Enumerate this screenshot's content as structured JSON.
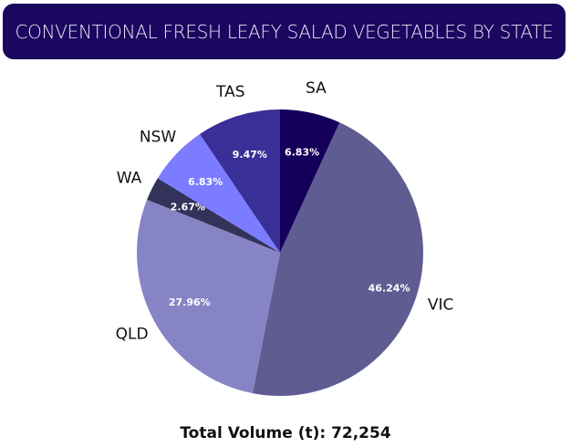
{
  "chart_data": {
    "type": "pie",
    "title": "CONVENTIONAL FRESH LEAFY SALAD VEGETABLES BY STATE",
    "categories": [
      "SA",
      "VIC",
      "QLD",
      "WA",
      "NSW",
      "TAS"
    ],
    "values": [
      6.83,
      46.24,
      27.96,
      2.67,
      6.83,
      9.47
    ],
    "value_labels": [
      "6.83%",
      "46.24%",
      "27.96%",
      "2.67%",
      "6.83%",
      "9.47%"
    ],
    "colors": [
      "#14005a",
      "#5f5c92",
      "#8784c6",
      "#33325a",
      "#7b7cff",
      "#3a2f96"
    ],
    "start": "top, clockwise",
    "legend": "none (labels outside slices)",
    "footer": "Total Volume (t): 72,254"
  }
}
